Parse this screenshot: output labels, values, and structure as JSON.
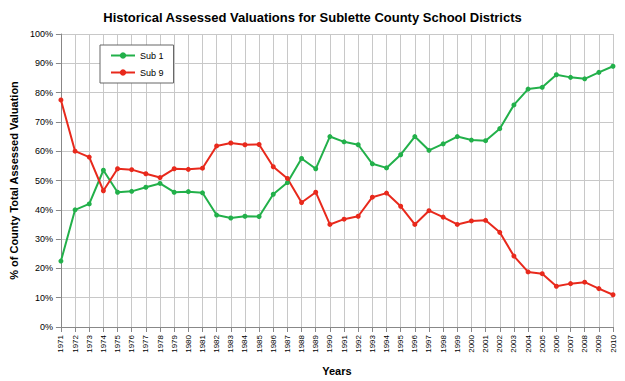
{
  "chart_data": {
    "type": "line",
    "title": "Historical Assessed Valuations for Sublette County School Districts",
    "x_label": "Years",
    "y_label": "% of County Total Assessed Valuation",
    "categories": [
      "1971",
      "1972",
      "1973",
      "1974",
      "1975",
      "1976",
      "1977",
      "1978",
      "1979",
      "1980",
      "1981",
      "1982",
      "1983",
      "1984",
      "1985",
      "1986",
      "1987",
      "1988",
      "1989",
      "1990",
      "1991",
      "1992",
      "1993",
      "1994",
      "1995",
      "1996",
      "1997",
      "1998",
      "1999",
      "2000",
      "2001",
      "2002",
      "2003",
      "2004",
      "2005",
      "2006",
      "2007",
      "2008",
      "2009",
      "2010"
    ],
    "series": [
      {
        "name": "Sub 1",
        "color": "#22b04a",
        "marker": "circle",
        "values": [
          22.5,
          40,
          42,
          53.5,
          46,
          46.3,
          47.7,
          49,
          46,
          46.2,
          45.8,
          38.2,
          37.2,
          37.8,
          37.7,
          45.3,
          49.3,
          57.5,
          54,
          65,
          63.2,
          62.2,
          55.7,
          54.3,
          58.8,
          65,
          60.3,
          62.5,
          65,
          63.8,
          63.6,
          67.7,
          75.8,
          81.2,
          81.8,
          86.1,
          85.2,
          84.7,
          86.9,
          89
        ]
      },
      {
        "name": "Sub 9",
        "color": "#e8291c",
        "marker": "circle",
        "values": [
          77.5,
          60,
          58,
          46.5,
          54,
          53.7,
          52.3,
          51,
          54,
          53.8,
          54.2,
          61.8,
          62.8,
          62.2,
          62.3,
          54.7,
          50.7,
          42.5,
          46,
          35,
          36.8,
          37.8,
          44.3,
          45.7,
          41.2,
          35,
          39.7,
          37.5,
          35,
          36.2,
          36.4,
          32.3,
          24.2,
          18.8,
          18.2,
          13.9,
          14.8,
          15.3,
          13.1,
          11
        ]
      }
    ],
    "ylim": [
      0,
      100
    ],
    "yticks": [
      {
        "value": 0,
        "label": "0%"
      },
      {
        "value": 10,
        "label": "10%"
      },
      {
        "value": 20,
        "label": "20%"
      },
      {
        "value": 30,
        "label": "30%"
      },
      {
        "value": 40,
        "label": "40%"
      },
      {
        "value": 50,
        "label": "50%"
      },
      {
        "value": 60,
        "label": "60%"
      },
      {
        "value": 70,
        "label": "70%"
      },
      {
        "value": 80,
        "label": "80%"
      },
      {
        "value": 90,
        "label": "90%"
      },
      {
        "value": 100,
        "label": "100%"
      }
    ],
    "grid": true,
    "legend": "upper left"
  }
}
